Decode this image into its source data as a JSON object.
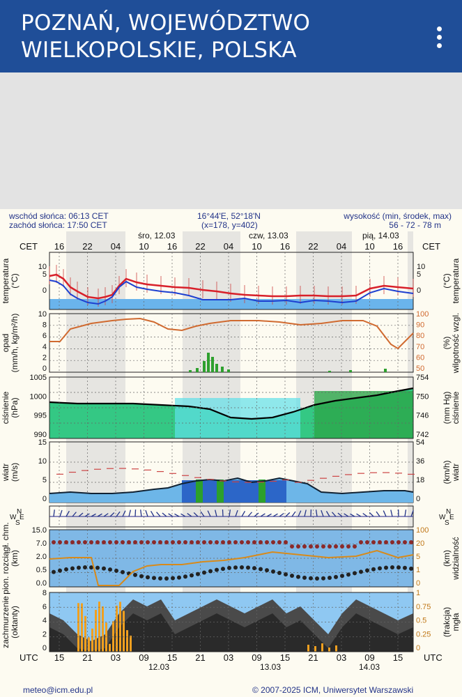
{
  "appbar": {
    "title": "POZNAŃ, WOJEWÓDZTWO\nWIELKOPOLSKIE, POLSKA",
    "menu_icon": "more-vert-icon",
    "color": "#1f4e98"
  },
  "meteogram": {
    "sunrise": "wschód słońca: 06:13 CET",
    "sunset": "zachód słońca: 17:50 CET",
    "coords": "16°44'E, 52°18'N",
    "grid": "(x=178, y=402)",
    "height_label": "wysokość (min, środek, max)",
    "height_values": "56 - 72 - 78 m",
    "tz_top": "CET",
    "tz_bottom": "UTC",
    "days_top": [
      "śro, 12.03",
      "czw, 13.03",
      "pią, 14.03"
    ],
    "days_bottom": [
      "12.03",
      "13.03",
      "14.03"
    ],
    "hours_top": [
      "16",
      "22",
      "04",
      "10",
      "16",
      "22",
      "04",
      "10",
      "16",
      "22",
      "04",
      "10",
      "16"
    ],
    "hours_bottom": [
      "15",
      "21",
      "03",
      "09",
      "15",
      "21",
      "03",
      "09",
      "15",
      "21",
      "03",
      "09",
      "15"
    ],
    "panels": {
      "temperature": {
        "left": "temperatura\n(°C)",
        "right": "temperatura\n(°C)",
        "ticks": [
          "10",
          "5",
          "0"
        ]
      },
      "precip": {
        "left": "opad\n(mm/h, kg/m²/h)",
        "right": "wilgotność wzgl.\n(%)",
        "ticks_left": [
          "10",
          "8",
          "6",
          "4",
          "2",
          "0"
        ],
        "ticks_right": [
          "100",
          "90",
          "80",
          "70",
          "60",
          "50"
        ]
      },
      "pressure": {
        "left": "ciśnienie\n(hPa)",
        "right": "ciśnienie\n(mm Hg)",
        "ticks_left": [
          "1005",
          "1000",
          "995",
          "990"
        ],
        "ticks_right": [
          "754",
          "750",
          "746",
          "742"
        ]
      },
      "wind": {
        "left": "wiatr\n(m/s)",
        "right": "wiatr\n(km/h)",
        "ticks_left": [
          "15",
          "10",
          "5",
          "0"
        ],
        "ticks_right": [
          "54",
          "36",
          "18",
          "0"
        ]
      },
      "direction": {
        "compass": [
          "N",
          "W",
          "E",
          "S"
        ]
      },
      "cloudbase": {
        "left": "pion. rozciągł. chm.\n(km)",
        "right": "widzialność\n(km)",
        "ticks_left": [
          "15.0",
          "7.0",
          "2.0",
          "0.5",
          "0.0"
        ],
        "ticks_right": [
          "100",
          "20",
          "5",
          "1",
          "0"
        ]
      },
      "clouds": {
        "left": "zachmurzenie\n(oktanty)",
        "right": "mgła\n(frakcja)",
        "ticks_left": [
          "8",
          "6",
          "4",
          "2",
          "0"
        ],
        "ticks_right": [
          "1",
          "0.75",
          "0.5",
          "0.25",
          "0"
        ]
      }
    },
    "footer_left": "meteo@icm.edu.pl",
    "footer_right": "© 2007-2025 ICM, Uniwersytet Warszawski"
  },
  "colors": {
    "temp_line": "#d8202a",
    "dew_line": "#1d3fd0",
    "humidity": "#d06a30",
    "pressure_fill": "#34c884",
    "wind_fill": "#2c66c8",
    "cloud_fill": "#4a4a4a"
  }
}
